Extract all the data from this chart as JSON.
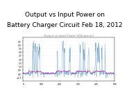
{
  "title_line1": "Output vs Input Power on",
  "title_line2": "Battery Charger Circuit Feb 18, 2012",
  "subtitle": "Output vs Input Power (500 points)",
  "title_fontsize": 6.5,
  "subtitle_fontsize": 3.0,
  "ylim": [
    -1,
    5
  ],
  "output_color": "#6699cc",
  "input_color": "#993399",
  "n_points": 500,
  "seed": 42
}
